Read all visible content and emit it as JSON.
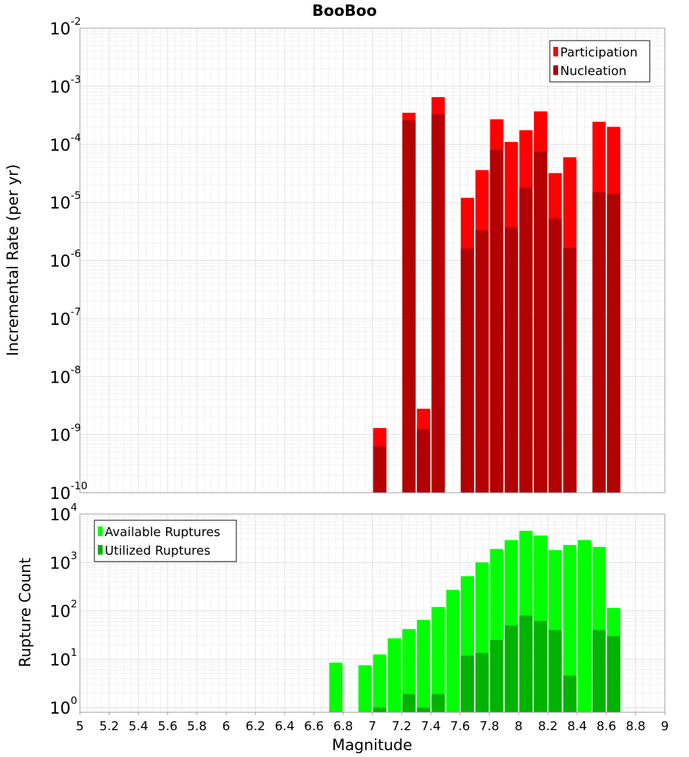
{
  "chart_data": [
    {
      "type": "bar",
      "title": "BooBoo",
      "ylabel": "Incremental Rate (per yr)",
      "yscale": "log",
      "ylim": [
        1e-10,
        0.01
      ],
      "xlim": [
        5,
        9
      ],
      "y_tick_exponents": [
        -10,
        -9,
        -8,
        -7,
        -6,
        -5,
        -4,
        -3,
        -2
      ],
      "legend": {
        "placement": "top-right",
        "entries": [
          "Participation",
          "Nucleation"
        ]
      },
      "grid": true,
      "colors": {
        "Participation": "#ff0000",
        "Nucleation": "#b30000"
      },
      "x": [
        7.05,
        7.25,
        7.35,
        7.45,
        7.65,
        7.75,
        7.85,
        7.95,
        8.05,
        8.15,
        8.25,
        8.35,
        8.55,
        8.65
      ],
      "series": [
        {
          "name": "Participation",
          "values": [
            1.3e-09,
            0.00035,
            2.8e-09,
            0.00065,
            1.2e-05,
            3.6e-05,
            0.00027,
            0.00011,
            0.000175,
            0.00037,
            3.2e-05,
            6e-05,
            0.000245,
            0.0002
          ]
        },
        {
          "name": "Nucleation",
          "values": [
            6.3e-10,
            0.00026,
            1.25e-09,
            0.00033,
            1.6e-06,
            3.3e-06,
            8e-05,
            3.7e-06,
            1.8e-05,
            7.6e-05,
            5.3e-06,
            1.65e-06,
            1.5e-05,
            1.4e-05
          ]
        }
      ]
    },
    {
      "type": "bar",
      "xlabel": "Magnitude",
      "ylabel": "Rupture Count",
      "yscale": "log",
      "ylim": [
        0.8,
        10000
      ],
      "xlim": [
        5,
        9
      ],
      "y_tick_exponents": [
        0,
        1,
        2,
        3,
        4
      ],
      "x_ticks": [
        "5",
        "5.2",
        "5.4",
        "5.6",
        "5.8",
        "6",
        "6.2",
        "6.4",
        "6.6",
        "6.8",
        "7",
        "7.2",
        "7.4",
        "7.6",
        "7.8",
        "8",
        "8.2",
        "8.4",
        "8.6",
        "8.8",
        "9"
      ],
      "legend": {
        "placement": "top-left",
        "entries": [
          "Available Ruptures",
          "Utilized Ruptures"
        ]
      },
      "grid": true,
      "colors": {
        "Available Ruptures": "#00ff00",
        "Utilized Ruptures": "#00b300"
      },
      "x": [
        6.75,
        6.95,
        7.05,
        7.15,
        7.25,
        7.35,
        7.45,
        7.55,
        7.65,
        7.75,
        7.85,
        7.95,
        8.05,
        8.15,
        8.25,
        8.35,
        8.45,
        8.55,
        8.65
      ],
      "series": [
        {
          "name": "Available Ruptures",
          "values": [
            8.5,
            7.5,
            12.5,
            27,
            42,
            65,
            120,
            270,
            520,
            1000,
            1900,
            2900,
            4500,
            3600,
            1800,
            2300,
            2900,
            2100,
            115
          ]
        },
        {
          "name": "Utilized Ruptures",
          "values": [
            0,
            0,
            1,
            0,
            1.9,
            1,
            1.9,
            0,
            12,
            13.5,
            25,
            50,
            80,
            62,
            40,
            4.6,
            0,
            40,
            30
          ]
        }
      ]
    }
  ]
}
